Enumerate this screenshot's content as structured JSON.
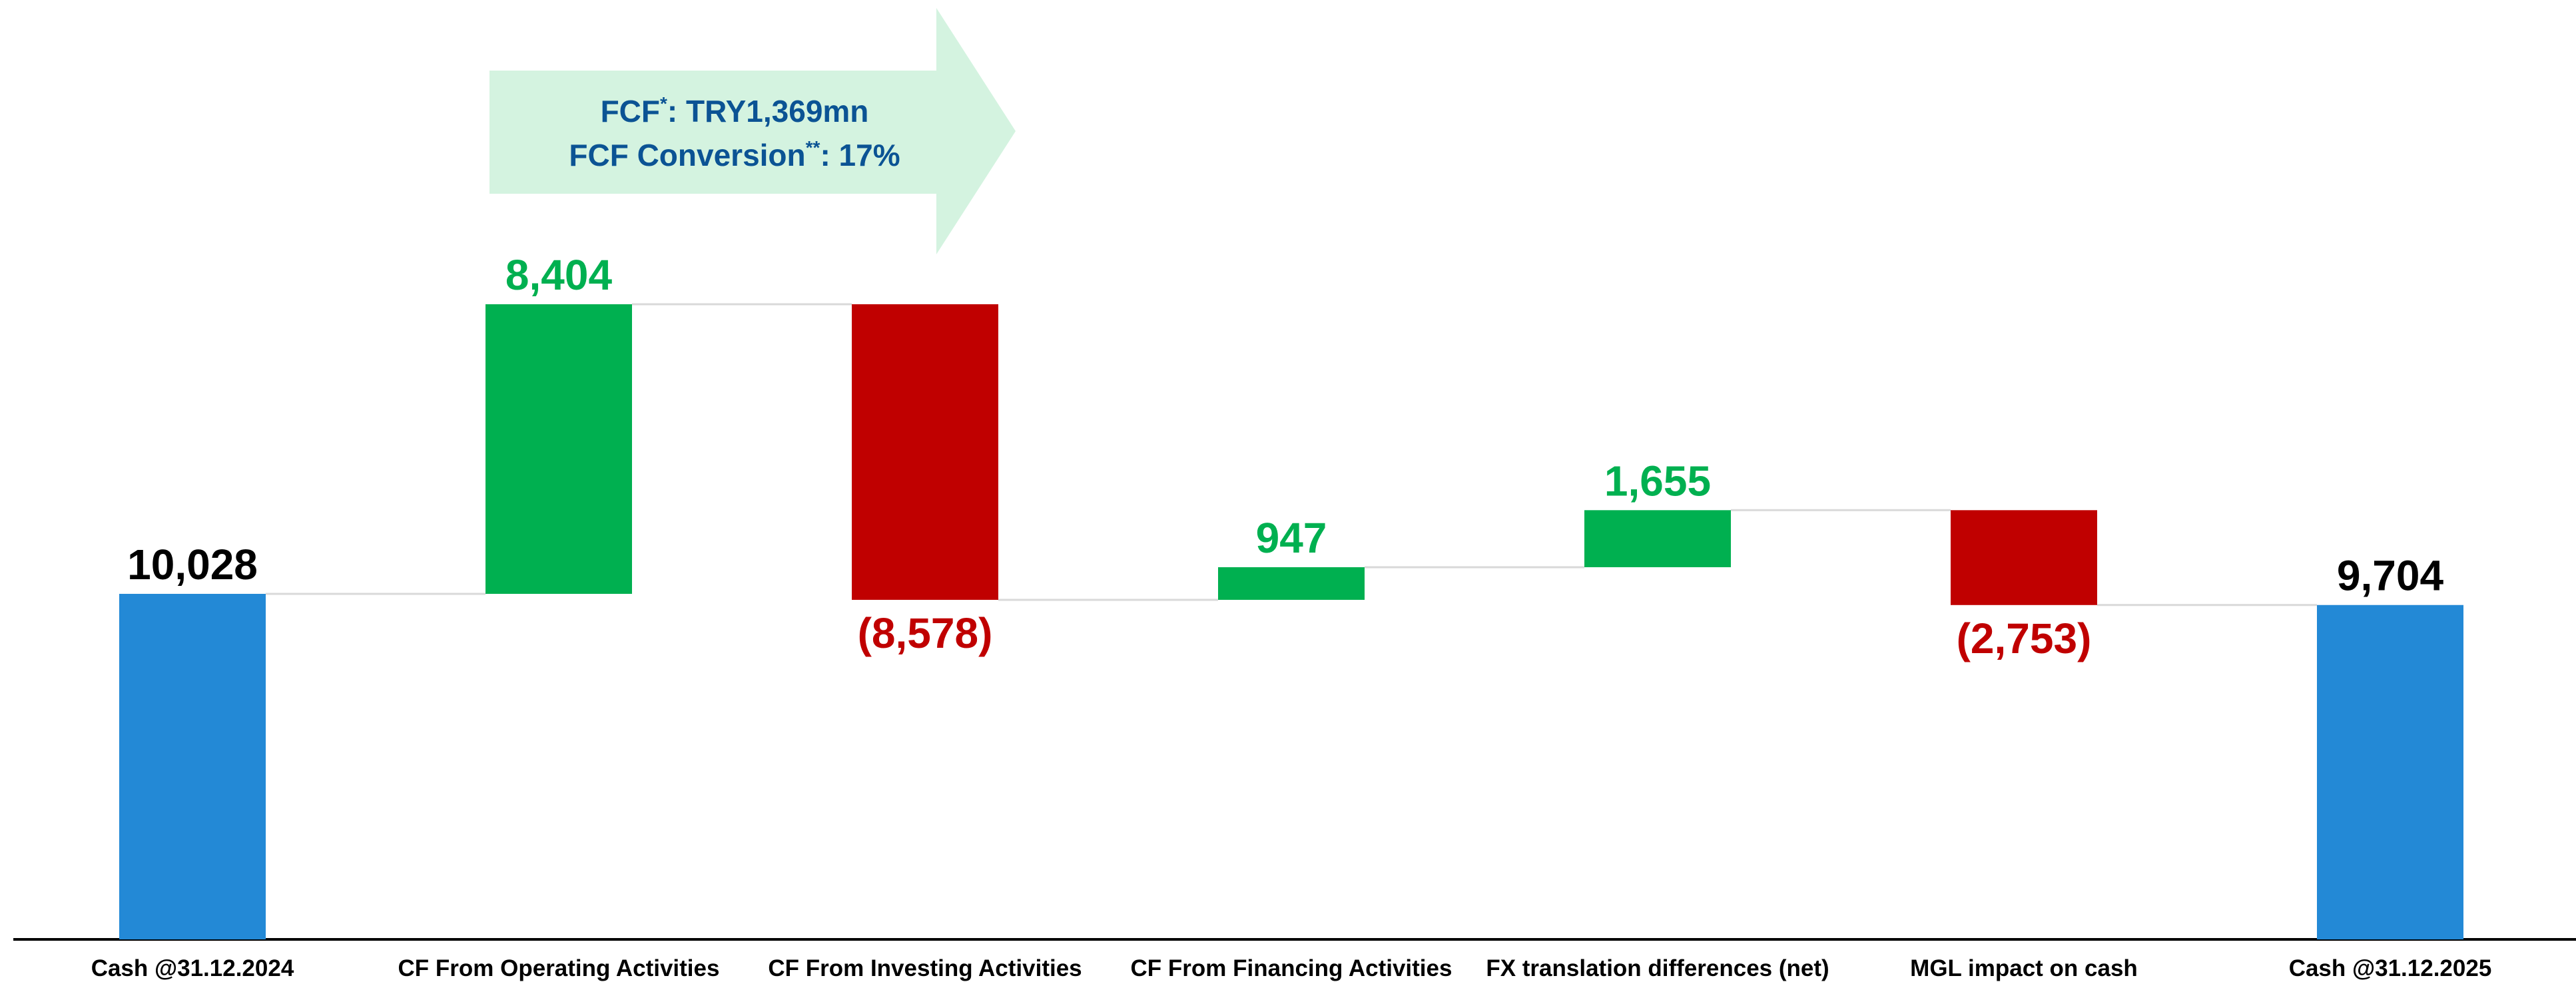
{
  "chart_data": {
    "type": "waterfall",
    "categories": [
      "Cash @31.12.2024",
      "CF From Operating Activities",
      "CF From Investing Activities",
      "CF From Financing Activities",
      "FX translation differences (net)",
      "MGL impact on cash",
      "Cash @31.12.2025"
    ],
    "values": [
      10028,
      8404,
      -8578,
      947,
      1655,
      -2753,
      9704
    ],
    "value_labels": [
      "10,028",
      "8,404",
      "(8,578)",
      "947",
      "1,655",
      "(2,753)",
      "9,704"
    ],
    "colors": {
      "total": "#2389d6",
      "increase": "#00b050",
      "decrease": "#c00000"
    },
    "annotation": [
      {
        "text": "FCF",
        "sup": "*",
        "rest": ": TRY1,369mn"
      },
      {
        "text": "FCF Conversion",
        "sup": "**",
        "rest": ": 17%"
      }
    ]
  }
}
